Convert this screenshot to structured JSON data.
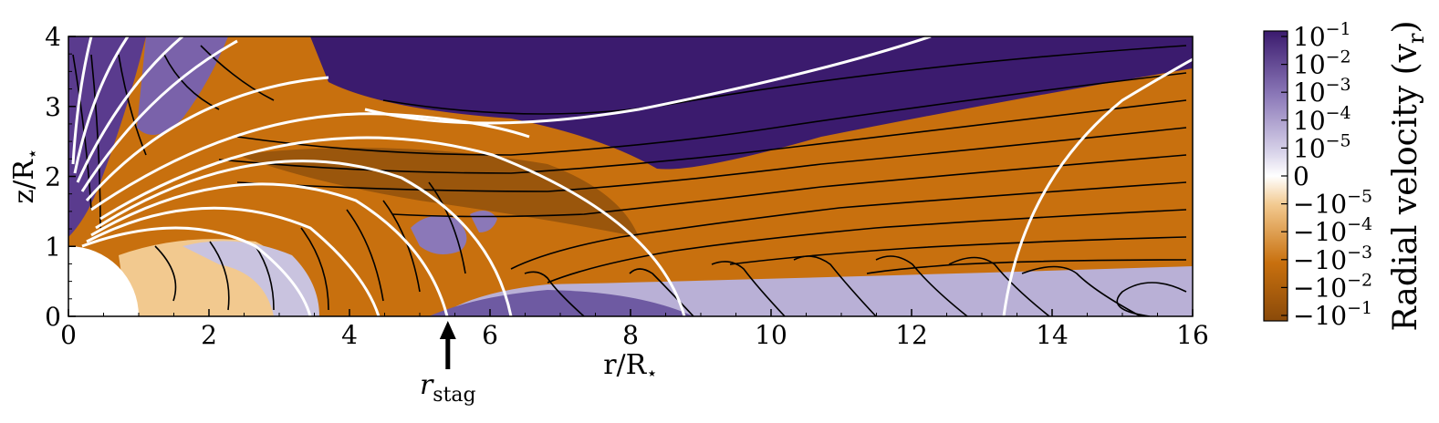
{
  "chart_data": {
    "type": "heatmap",
    "xlabel": "r/R",
    "ylabel": "z/R",
    "label_subscript": "⋆",
    "xlim": [
      0,
      16
    ],
    "ylim": [
      0,
      4
    ],
    "xticks": [
      "0",
      "2",
      "4",
      "6",
      "8",
      "10",
      "12",
      "14",
      "16"
    ],
    "yticks": [
      "0",
      "1",
      "2",
      "3",
      "4"
    ],
    "annotation": {
      "text": "r",
      "sub": "stag",
      "x": 5.4
    },
    "colorbar": {
      "label": "Radial velocity (v",
      "label_sub": "r",
      "label_end": ")",
      "ticks": [
        {
          "base": "10",
          "exp": "−1"
        },
        {
          "base": "10",
          "exp": "−2"
        },
        {
          "base": "10",
          "exp": "−3"
        },
        {
          "base": "10",
          "exp": "−4"
        },
        {
          "base": "10",
          "exp": "−5"
        },
        {
          "base": "0",
          "exp": ""
        },
        {
          "base": "−10",
          "exp": "−5"
        },
        {
          "base": "−10",
          "exp": "−4"
        },
        {
          "base": "−10",
          "exp": "−3"
        },
        {
          "base": "−10",
          "exp": "−2"
        },
        {
          "base": "−10",
          "exp": "−1"
        }
      ]
    },
    "colors": {
      "inflow_strong": "#8a4a0a",
      "inflow": "#c8700e",
      "inflow_weak": "#f2c98f",
      "zero": "#ffffff",
      "outflow_weak": "#c9c3df",
      "outflow": "#8b78b8",
      "outflow_strong": "#3b1b6e",
      "field_lines": "#ffffff",
      "streamlines": "#000000"
    }
  }
}
